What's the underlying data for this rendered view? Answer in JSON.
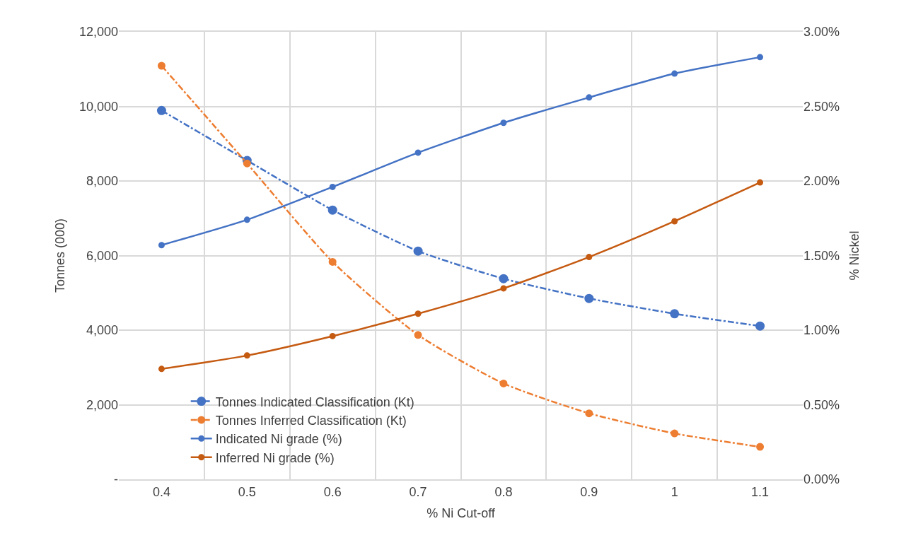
{
  "chart_data": {
    "type": "line",
    "xlabel": "% Ni Cut-off",
    "ylabel": "Tonnes (000)",
    "y2label": "% Nickel",
    "categories": [
      "0.4",
      "0.5",
      "0.6",
      "0.7",
      "0.8",
      "0.9",
      "1",
      "1.1"
    ],
    "series": [
      {
        "name": "Tonnes Indicated Classification (Kt)",
        "color": "#4472c4",
        "line_style": "dashed",
        "marker": "circle",
        "values": [
          9890,
          8550,
          7220,
          6120,
          5380,
          4850,
          4440,
          4110
        ]
      },
      {
        "name": "Tonnes Inferred Classification (Kt)",
        "color": "#ed7d31",
        "line_style": "dashed",
        "marker": "circle",
        "values": [
          11090,
          8470,
          5830,
          3870,
          2570,
          1770,
          1230,
          870
        ]
      },
      {
        "name": "Indicated Ni grade (%)",
        "color": "#4472c4",
        "line_style": "solid",
        "marker": "circle",
        "axis": "y2",
        "values": [
          1.57,
          1.74,
          1.96,
          2.19,
          2.39,
          2.56,
          2.72,
          2.83
        ]
      },
      {
        "name": "Inferred Ni grade (%)",
        "color": "#c55a11",
        "line_style": "solid",
        "marker": "circle",
        "axis": "y2",
        "values": [
          0.74,
          0.83,
          0.96,
          1.11,
          1.28,
          1.49,
          1.73,
          1.99
        ]
      }
    ],
    "ylim": [
      0,
      12000
    ],
    "yticks": [
      {
        "value": 0,
        "label": "-"
      },
      {
        "value": 2000,
        "label": "2,000"
      },
      {
        "value": 4000,
        "label": "4,000"
      },
      {
        "value": 6000,
        "label": "6,000"
      },
      {
        "value": 8000,
        "label": "8,000"
      },
      {
        "value": 10000,
        "label": "10,000"
      },
      {
        "value": 12000,
        "label": "12,000"
      }
    ],
    "y2lim": [
      0,
      3
    ],
    "y2ticks": [
      {
        "value": 0,
        "label": "0.00%"
      },
      {
        "value": 0.5,
        "label": "0.50%"
      },
      {
        "value": 1,
        "label": "1.00%"
      },
      {
        "value": 1.5,
        "label": "1.50%"
      },
      {
        "value": 2,
        "label": "2.00%"
      },
      {
        "value": 2.5,
        "label": "2.50%"
      },
      {
        "value": 3,
        "label": "3.00%"
      }
    ],
    "grid": true,
    "legend": "bottom left"
  }
}
